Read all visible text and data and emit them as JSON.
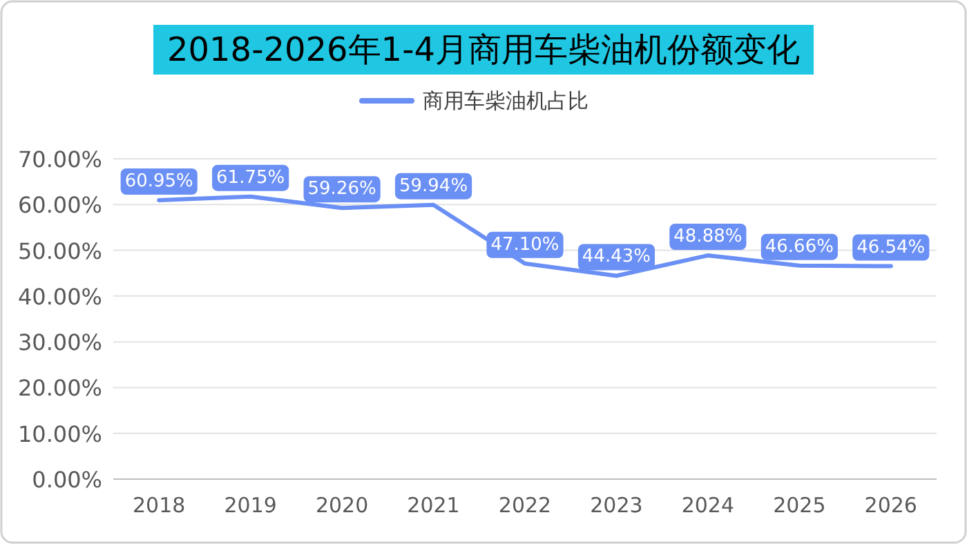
{
  "chart_data": {
    "type": "line",
    "title": "2018-2026年1-4月商用车柴油机份额变化",
    "categories": [
      "2018",
      "2019",
      "2020",
      "2021",
      "2022",
      "2023",
      "2024",
      "2025",
      "2026"
    ],
    "series": [
      {
        "name": "商用车柴油机占比",
        "color": "#6a8ff5",
        "values": [
          60.95,
          61.75,
          59.26,
          59.94,
          47.1,
          44.43,
          48.88,
          46.66,
          46.54
        ],
        "value_labels": [
          "60.95%",
          "61.75%",
          "59.26%",
          "59.94%",
          "47.10%",
          "44.43%",
          "48.88%",
          "46.66%",
          "46.54%"
        ]
      }
    ],
    "ylim": [
      0,
      70
    ],
    "yticks": [
      {
        "value": 0,
        "label": "0.00%"
      },
      {
        "value": 10,
        "label": "10.00%"
      },
      {
        "value": 20,
        "label": "20.00%"
      },
      {
        "value": 30,
        "label": "30.00%"
      },
      {
        "value": 40,
        "label": "40.00%"
      },
      {
        "value": 50,
        "label": "50.00%"
      },
      {
        "value": 60,
        "label": "60.00%"
      },
      {
        "value": 70,
        "label": "70.00%"
      }
    ],
    "grid": "y",
    "legend": "top",
    "line_style": "solid"
  }
}
